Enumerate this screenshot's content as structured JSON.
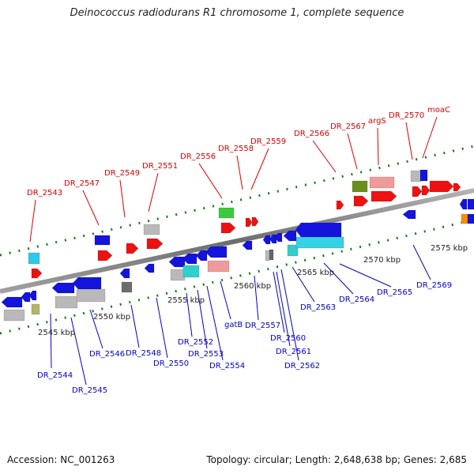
{
  "title": "Deinococcus radiodurans R1 chromosome 1, complete sequence",
  "accession": "Accession: NC_001263",
  "topology": "Topology: circular; Length: 2,648,638 bp; Genes: 2,685",
  "colors": {
    "label_red": "#dd0000",
    "label_blue": "#0000cc",
    "backbone": "#8c8c8c",
    "tick_green": "#1c7a1c"
  },
  "scale_labels": [
    "2545 kbp",
    "2550 kbp",
    "2555 kbp",
    "2560 kbp",
    "2565 kbp",
    "2570 kbp",
    "2575 kbp"
  ],
  "top_genes": [
    "DR_2543",
    "DR_2547",
    "DR_2549",
    "DR_2551",
    "DR_2556",
    "DR_2558",
    "DR_2559",
    "DR_2566",
    "DR_2567",
    "argS",
    "DR_2570",
    "moaC"
  ],
  "bottom_genes": [
    "DR_2544",
    "DR_2545",
    "DR_2546",
    "DR_2548",
    "DR_2550",
    "DR_2552",
    "DR_2553",
    "DR_2554",
    "gatB",
    "DR_2557",
    "DR_2560",
    "DR_2561",
    "DR_2562",
    "DR_2563",
    "DR_2564",
    "DR_2565",
    "DR_2569"
  ]
}
